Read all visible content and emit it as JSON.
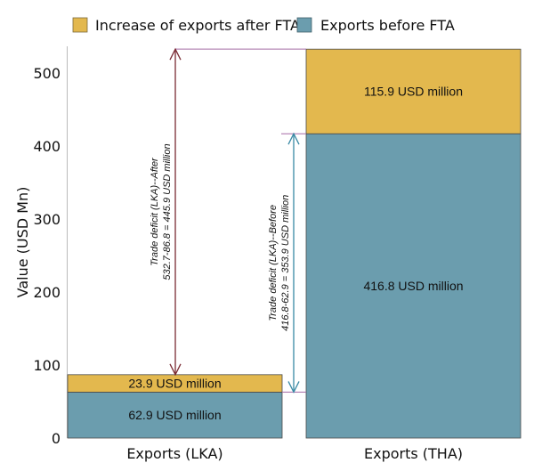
{
  "chart_data": {
    "type": "bar",
    "stacked": true,
    "title": "",
    "xlabel": "",
    "ylabel": "Value (USD Mn)",
    "ylim": [
      0,
      532.7
    ],
    "yticks": [
      0,
      100,
      200,
      300,
      400,
      500
    ],
    "ytick_labels": [
      "0",
      "100",
      "200",
      "300",
      "400",
      "500"
    ],
    "grid": false,
    "legend_position": "top",
    "categories": [
      "Exports (LKA)",
      "Exports (THA)"
    ],
    "series": [
      {
        "name": "Exports before FTA",
        "color": "#6b9dae",
        "values": [
          62.9,
          416.8
        ],
        "labels": [
          "62.9 USD million",
          "416.8 USD million"
        ]
      },
      {
        "name": "Increase of exports after FTA",
        "color": "#e3b84e",
        "values": [
          23.9,
          115.9
        ],
        "labels": [
          "23.9 USD million",
          "115.9 USD million"
        ]
      }
    ],
    "legend": [
      "Increase of exports after FTA",
      "Exports before FTA"
    ],
    "annotations": [
      {
        "name": "trade-deficit-after",
        "from": 86.8,
        "to": 532.7,
        "color": "#7a2b33",
        "line1": "Trade deficit (LKA)--After",
        "line2": "532.7-86.8 = 445.9 USD million"
      },
      {
        "name": "trade-deficit-before",
        "from": 62.9,
        "to": 416.8,
        "color": "#3a8aa5",
        "line1": "Trade deficit (LKA)--Before",
        "line2": "416.8-62.9 = 353.9 USD million"
      }
    ],
    "guide_line_color": "#a56aa5"
  }
}
